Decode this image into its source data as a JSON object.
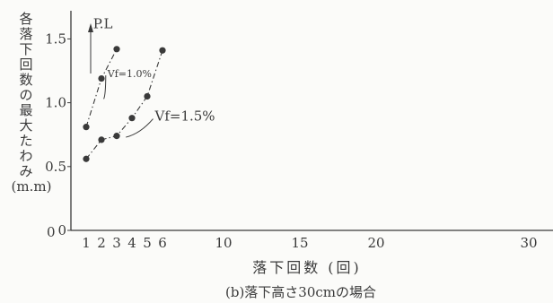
{
  "colors": {
    "ink": "#3a3a3a",
    "background": "#fbfbf9"
  },
  "chart_data": {
    "type": "line",
    "caption": "(b)落下高さ30cmの場合",
    "xlabel": "落下回数  (回)",
    "ylabel": [
      "各",
      "落",
      "下",
      "回",
      "数",
      "の",
      "最",
      "大",
      "た",
      "わ",
      "み",
      "(m.m)"
    ],
    "xlim": [
      0,
      31
    ],
    "ylim": [
      0,
      1.72
    ],
    "x_ticks": [
      1,
      2,
      3,
      4,
      5,
      6,
      10,
      15,
      20,
      30
    ],
    "y_ticks": [
      {
        "value": 0,
        "label": "0"
      },
      {
        "value": 0.5,
        "label": "0.5"
      },
      {
        "value": 1.0,
        "label": "1.0"
      },
      {
        "value": 1.5,
        "label": "1.5"
      }
    ],
    "origin_label": "0",
    "pl_annotation": {
      "text": "P.L",
      "x": 1.1,
      "y": 1.62
    },
    "series": [
      {
        "name": "Vf=1.0%",
        "x": [
          1,
          2,
          3
        ],
        "y": [
          0.81,
          1.19,
          1.42
        ],
        "label_pos": {
          "x": 2.4,
          "y": 1.2
        },
        "pointer_to": {
          "x": 2.15,
          "y": 1.03
        }
      },
      {
        "name": "Vf=1.5%",
        "x": [
          1,
          2,
          3,
          4,
          5,
          6
        ],
        "y": [
          0.56,
          0.71,
          0.74,
          0.88,
          1.05,
          1.41
        ],
        "label_pos": {
          "x": 5.5,
          "y": 0.86
        },
        "pointer_to": {
          "x": 3.6,
          "y": 0.73
        }
      }
    ]
  }
}
